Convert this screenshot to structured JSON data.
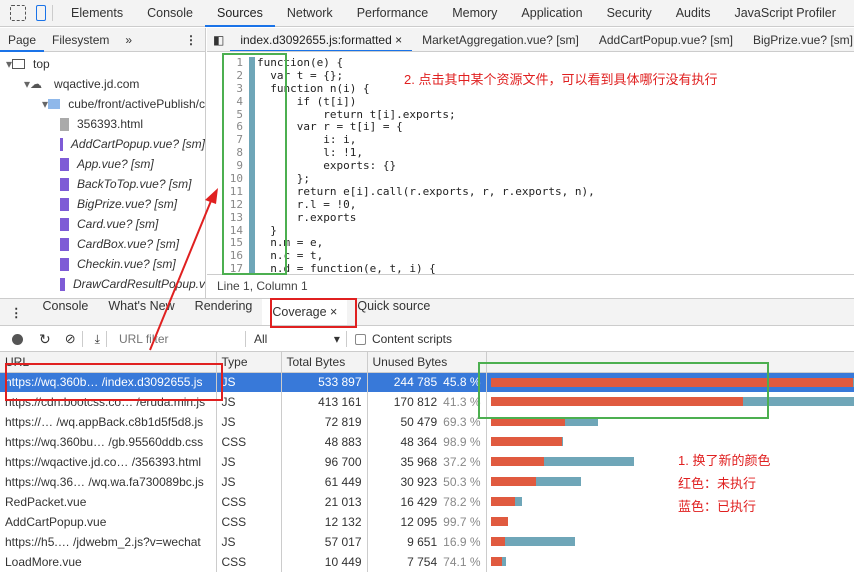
{
  "main_tabs": [
    "Elements",
    "Console",
    "Sources",
    "Network",
    "Performance",
    "Memory",
    "Application",
    "Security",
    "Audits",
    "JavaScript Profiler"
  ],
  "active_main_tab": "Sources",
  "navigator": {
    "tabs": [
      "Page",
      "Filesystem",
      "»"
    ],
    "tree": [
      {
        "label": "top",
        "type": "frame",
        "indent": 0
      },
      {
        "label": "wqactive.jd.com",
        "type": "cloud",
        "indent": 1
      },
      {
        "label": "cube/front/activePublish/c",
        "type": "folder",
        "indent": 2
      },
      {
        "label": "356393.html",
        "type": "html",
        "indent": 3
      },
      {
        "label": "AddCartPopup.vue? [sm]",
        "type": "vue",
        "indent": 3
      },
      {
        "label": "App.vue? [sm]",
        "type": "vue",
        "indent": 3
      },
      {
        "label": "BackToTop.vue? [sm]",
        "type": "vue",
        "indent": 3
      },
      {
        "label": "BigPrize.vue? [sm]",
        "type": "vue",
        "indent": 3
      },
      {
        "label": "Card.vue? [sm]",
        "type": "vue",
        "indent": 3
      },
      {
        "label": "CardBox.vue? [sm]",
        "type": "vue",
        "indent": 3
      },
      {
        "label": "Checkin.vue? [sm]",
        "type": "vue",
        "indent": 3
      },
      {
        "label": "DrawCardResultPopup.v",
        "type": "vue",
        "indent": 3
      }
    ]
  },
  "editor_tabs": [
    "index.d3092655.js:formatted",
    "MarketAggregation.vue? [sm]",
    "AddCartPopup.vue? [sm]",
    "BigPrize.vue? [sm]"
  ],
  "code_lines": [
    "function(e) {",
    "  var t = {};",
    "  function n(i) {",
    "      if (t[i])",
    "          return t[i].exports;",
    "      var r = t[i] = {",
    "          i: i,",
    "          l: !1,",
    "          exports: {}",
    "      };",
    "      return e[i].call(r.exports, r, r.exports, n),",
    "      r.l = !0,",
    "      r.exports",
    "  }",
    "  n.m = e,",
    "  n.c = t,",
    "  n.d = function(e, t, i) {"
  ],
  "status": "Line 1, Column 1",
  "drawer_tabs": [
    "Console",
    "What's New",
    "Rendering",
    "Coverage",
    "Quick source"
  ],
  "active_drawer_tab": "Coverage",
  "toolbar": {
    "url_filter_placeholder": "URL filter",
    "type_select": "All",
    "content_scripts": "Content scripts"
  },
  "columns": [
    "URL",
    "Type",
    "Total Bytes",
    "Unused Bytes"
  ],
  "rows": [
    {
      "url": "https://wq.360b… /index.d3092655.js",
      "type": "JS",
      "total": "533 897",
      "unused": "244 785",
      "pct": "45.8 %",
      "t": 533897,
      "u": 244785
    },
    {
      "url": "https://cdn.bootcss.co… /eruda.min.js",
      "type": "JS",
      "total": "413 161",
      "unused": "170 812",
      "pct": "41.3 %",
      "t": 413161,
      "u": 170812
    },
    {
      "url": "https://… /wq.appBack.c8b1d5f5d8.js",
      "type": "JS",
      "total": "72 819",
      "unused": "50 479",
      "pct": "69.3 %",
      "t": 72819,
      "u": 50479
    },
    {
      "url": "https://wq.360bu… /gb.95560ddb.css",
      "type": "CSS",
      "total": "48 883",
      "unused": "48 364",
      "pct": "98.9 %",
      "t": 48883,
      "u": 48364
    },
    {
      "url": "https://wqactive.jd.co… /356393.html",
      "type": "JS",
      "total": "96 700",
      "unused": "35 968",
      "pct": "37.2 %",
      "t": 96700,
      "u": 35968
    },
    {
      "url": "https://wq.36… /wq.wa.fa730089bc.js",
      "type": "JS",
      "total": "61 449",
      "unused": "30 923",
      "pct": "50.3 %",
      "t": 61449,
      "u": 30923
    },
    {
      "url": "RedPacket.vue",
      "type": "CSS",
      "total": "21 013",
      "unused": "16 429",
      "pct": "78.2 %",
      "t": 21013,
      "u": 16429
    },
    {
      "url": "AddCartPopup.vue",
      "type": "CSS",
      "total": "12 132",
      "unused": "12 095",
      "pct": "99.7 %",
      "t": 12132,
      "u": 12095
    },
    {
      "url": "https://h5.… /jdwebm_2.js?v=wechat",
      "type": "JS",
      "total": "57 017",
      "unused": "9 651",
      "pct": "16.9 %",
      "t": 57017,
      "u": 9651
    },
    {
      "url": "LoadMore.vue",
      "type": "CSS",
      "total": "10 449",
      "unused": "7 754",
      "pct": "74.1 %",
      "t": 10449,
      "u": 7754
    }
  ],
  "annotations": {
    "step2": "2. 点击其中某个资源文件，可以看到具体哪行没有执行",
    "step1": "1. 换了新的颜色",
    "red": "红色：未执行",
    "blue": "蓝色：已执行"
  },
  "colors": {
    "unused": "#e05a3f",
    "used": "#6fa6b8",
    "selected": "#3879d9",
    "accent": "#1a73e8"
  }
}
